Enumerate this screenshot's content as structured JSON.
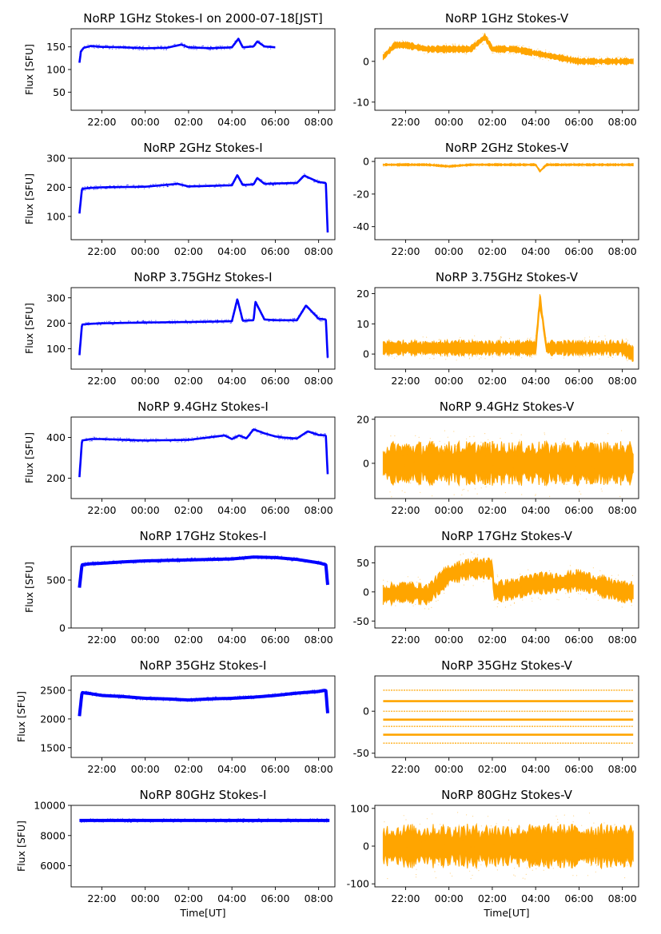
{
  "figure": {
    "xlabel": "Time[UT]",
    "ylabel": "Flux [SFU]",
    "time_ticks": [
      "22:00",
      "00:00",
      "02:00",
      "04:00",
      "06:00",
      "08:00"
    ]
  },
  "chart_data": [
    {
      "type": "scatter",
      "title": "NoRP 1GHz Stokes-I on 2000-07-18[JST]",
      "xlabel": "",
      "ylabel": "Flux [SFU]",
      "color": "#0000ff",
      "x_range": [
        "20:35",
        "08:45"
      ],
      "ylim": [
        10,
        190
      ],
      "yticks": [
        50,
        100,
        150
      ],
      "data_range": [
        "20:58",
        "06:00"
      ],
      "x": [
        "20:58",
        "21:02",
        "21:10",
        "21:30",
        "22:00",
        "23:00",
        "00:00",
        "01:00",
        "01:40",
        "02:00",
        "03:00",
        "04:00",
        "04:18",
        "04:30",
        "05:00",
        "05:10",
        "05:30",
        "06:00"
      ],
      "y": [
        115,
        140,
        148,
        152,
        150,
        149,
        147,
        148,
        155,
        149,
        147,
        149,
        168,
        149,
        151,
        162,
        151,
        149
      ]
    },
    {
      "type": "scatter",
      "title": "NoRP 1GHz Stokes-V",
      "xlabel": "",
      "ylabel": "",
      "color": "#ffa500",
      "x_range": [
        "20:35",
        "08:45"
      ],
      "ylim": [
        -12,
        8
      ],
      "yticks": [
        -10,
        0
      ],
      "data_range": [
        "20:58",
        "08:30"
      ],
      "x": [
        "20:58",
        "21:30",
        "22:00",
        "23:00",
        "00:00",
        "01:00",
        "01:40",
        "02:00",
        "03:00",
        "04:00",
        "05:00",
        "06:00",
        "07:00",
        "08:30"
      ],
      "y": [
        1,
        4,
        4,
        3,
        3,
        3,
        6,
        3,
        3,
        2,
        1,
        0,
        0,
        0
      ]
    },
    {
      "type": "scatter",
      "title": "NoRP 2GHz Stokes-I",
      "xlabel": "",
      "ylabel": "Flux [SFU]",
      "color": "#0000ff",
      "x_range": [
        "20:35",
        "08:45"
      ],
      "ylim": [
        20,
        300
      ],
      "yticks": [
        100,
        200,
        300
      ],
      "data_range": [
        "20:58",
        "08:25"
      ],
      "x": [
        "20:58",
        "21:05",
        "21:30",
        "22:00",
        "00:00",
        "01:30",
        "02:00",
        "04:00",
        "04:15",
        "04:30",
        "05:00",
        "05:10",
        "05:30",
        "06:00",
        "07:00",
        "07:20",
        "08:00",
        "08:20",
        "08:25"
      ],
      "y": [
        110,
        195,
        198,
        200,
        202,
        212,
        203,
        207,
        242,
        208,
        210,
        232,
        212,
        213,
        215,
        240,
        218,
        215,
        45
      ]
    },
    {
      "type": "scatter",
      "title": "NoRP 2GHz Stokes-V",
      "xlabel": "",
      "ylabel": "",
      "color": "#ffa500",
      "x_range": [
        "20:35",
        "08:45"
      ],
      "ylim": [
        -48,
        2
      ],
      "yticks": [
        -40,
        -20,
        0
      ],
      "data_range": [
        "20:58",
        "08:30"
      ],
      "x": [
        "20:58",
        "22:00",
        "23:00",
        "00:00",
        "01:00",
        "02:00",
        "03:00",
        "04:00",
        "04:12",
        "04:30",
        "06:00",
        "08:00",
        "08:30"
      ],
      "y": [
        -2,
        -2,
        -2,
        -3,
        -2,
        -2,
        -2,
        -2,
        -6,
        -2,
        -2,
        -2,
        -2
      ]
    },
    {
      "type": "scatter",
      "title": "NoRP 3.75GHz Stokes-I",
      "xlabel": "",
      "ylabel": "Flux [SFU]",
      "color": "#0000ff",
      "x_range": [
        "20:35",
        "08:45"
      ],
      "ylim": [
        20,
        340
      ],
      "yticks": [
        100,
        200,
        300
      ],
      "data_range": [
        "20:58",
        "08:25"
      ],
      "x": [
        "20:58",
        "21:05",
        "21:30",
        "22:00",
        "00:00",
        "02:00",
        "04:00",
        "04:15",
        "04:30",
        "05:00",
        "05:05",
        "05:30",
        "06:00",
        "07:00",
        "07:25",
        "08:00",
        "08:20",
        "08:25"
      ],
      "y": [
        75,
        195,
        198,
        200,
        203,
        205,
        208,
        295,
        210,
        212,
        285,
        215,
        212,
        212,
        270,
        218,
        215,
        65
      ]
    },
    {
      "type": "scatter",
      "title": "NoRP 3.75GHz Stokes-V",
      "xlabel": "",
      "ylabel": "",
      "color": "#ffa500",
      "x_range": [
        "20:35",
        "08:45"
      ],
      "ylim": [
        -5,
        22
      ],
      "yticks": [
        0,
        10,
        20
      ],
      "data_range": [
        "20:58",
        "08:30"
      ],
      "x": [
        "20:58",
        "22:00",
        "00:00",
        "02:00",
        "04:00",
        "04:12",
        "04:30",
        "06:00",
        "08:00",
        "08:30"
      ],
      "y": [
        2,
        2,
        2,
        2,
        2,
        18,
        2,
        2,
        2,
        0
      ]
    },
    {
      "type": "scatter",
      "title": "NoRP 9.4GHz Stokes-I",
      "xlabel": "",
      "ylabel": "Flux [SFU]",
      "color": "#0000ff",
      "x_range": [
        "20:35",
        "08:45"
      ],
      "ylim": [
        100,
        500
      ],
      "yticks": [
        200,
        400
      ],
      "data_range": [
        "20:58",
        "08:25"
      ],
      "x": [
        "20:58",
        "21:05",
        "21:30",
        "22:00",
        "00:00",
        "02:00",
        "03:40",
        "04:00",
        "04:20",
        "04:40",
        "05:00",
        "05:30",
        "06:00",
        "06:30",
        "07:00",
        "07:30",
        "08:00",
        "08:20",
        "08:25"
      ],
      "y": [
        205,
        385,
        392,
        392,
        385,
        388,
        410,
        392,
        410,
        395,
        440,
        420,
        405,
        398,
        395,
        430,
        412,
        410,
        220
      ]
    },
    {
      "type": "scatter",
      "title": "NoRP 9.4GHz Stokes-V",
      "xlabel": "",
      "ylabel": "",
      "color": "#ffa500",
      "x_range": [
        "20:35",
        "08:45"
      ],
      "ylim": [
        -16,
        21
      ],
      "yticks": [
        0,
        20
      ],
      "data_range": [
        "20:58",
        "08:30"
      ],
      "x": [
        "20:58",
        "22:00",
        "00:00",
        "02:00",
        "04:00",
        "06:00",
        "08:00",
        "08:30"
      ],
      "y": [
        0,
        0,
        0,
        0,
        0,
        0,
        0,
        0
      ]
    },
    {
      "type": "scatter",
      "title": "NoRP 17GHz Stokes-I",
      "xlabel": "",
      "ylabel": "Flux [SFU]",
      "color": "#0000ff",
      "x_range": [
        "20:35",
        "08:45"
      ],
      "ylim": [
        0,
        850
      ],
      "yticks": [
        0,
        500
      ],
      "data_range": [
        "20:58",
        "08:25"
      ],
      "x": [
        "20:58",
        "21:05",
        "21:30",
        "22:00",
        "23:00",
        "00:00",
        "01:00",
        "02:00",
        "03:00",
        "04:00",
        "05:00",
        "06:00",
        "07:00",
        "08:00",
        "08:20",
        "08:25"
      ],
      "y": [
        420,
        660,
        670,
        675,
        690,
        700,
        705,
        710,
        715,
        720,
        740,
        735,
        715,
        680,
        660,
        450
      ]
    },
    {
      "type": "scatter",
      "title": "NoRP 17GHz Stokes-V",
      "xlabel": "",
      "ylabel": "",
      "color": "#ffa500",
      "x_range": [
        "20:35",
        "08:45"
      ],
      "ylim": [
        -62,
        78
      ],
      "yticks": [
        -50,
        0,
        50
      ],
      "data_range": [
        "20:58",
        "08:30"
      ],
      "x": [
        "20:58",
        "22:00",
        "23:00",
        "00:00",
        "01:00",
        "02:00",
        "02:05",
        "03:00",
        "04:00",
        "05:00",
        "06:00",
        "07:00",
        "08:00",
        "08:30"
      ],
      "y": [
        -5,
        0,
        -5,
        30,
        40,
        40,
        0,
        5,
        15,
        15,
        20,
        10,
        0,
        0
      ]
    },
    {
      "type": "scatter",
      "title": "NoRP 35GHz Stokes-I",
      "xlabel": "",
      "ylabel": "Flux [SFU]",
      "color": "#0000ff",
      "x_range": [
        "20:35",
        "08:45"
      ],
      "ylim": [
        1330,
        2750
      ],
      "yticks": [
        1500,
        2000,
        2500
      ],
      "data_range": [
        "20:58",
        "08:25"
      ],
      "x": [
        "20:58",
        "21:05",
        "21:30",
        "22:00",
        "23:00",
        "00:00",
        "01:00",
        "02:00",
        "03:00",
        "04:00",
        "05:00",
        "06:00",
        "07:00",
        "08:00",
        "08:20",
        "08:25"
      ],
      "y": [
        2050,
        2460,
        2440,
        2410,
        2390,
        2360,
        2350,
        2330,
        2350,
        2360,
        2380,
        2410,
        2450,
        2480,
        2500,
        2100
      ]
    },
    {
      "type": "scatter",
      "title": "NoRP 35GHz Stokes-V",
      "xlabel": "",
      "ylabel": "",
      "color": "#ffa500",
      "x_range": [
        "20:35",
        "08:45"
      ],
      "ylim": [
        -55,
        42
      ],
      "yticks": [
        -50,
        0
      ],
      "data_range": [
        "20:58",
        "08:30"
      ],
      "levels": [
        25,
        12,
        0,
        -10,
        -18,
        -28,
        -38
      ]
    },
    {
      "type": "scatter",
      "title": "NoRP 80GHz Stokes-I",
      "xlabel": "Time[UT]",
      "ylabel": "Flux [SFU]",
      "color": "#0000ff",
      "x_range": [
        "20:35",
        "08:45"
      ],
      "ylim": [
        4600,
        10000
      ],
      "yticks": [
        6000,
        8000,
        10000
      ],
      "data_range": [
        "20:58",
        "08:30"
      ],
      "x": [
        "20:58",
        "22:00",
        "00:00",
        "02:00",
        "04:00",
        "06:00",
        "08:00",
        "08:30"
      ],
      "y": [
        9000,
        9000,
        9000,
        9000,
        9000,
        9000,
        9000,
        9000
      ]
    },
    {
      "type": "scatter",
      "title": "NoRP 80GHz Stokes-V",
      "xlabel": "Time[UT]",
      "ylabel": "",
      "color": "#ffa500",
      "x_range": [
        "20:35",
        "08:45"
      ],
      "ylim": [
        -108,
        108
      ],
      "yticks": [
        -100,
        0,
        100
      ],
      "data_range": [
        "20:58",
        "08:30"
      ],
      "x": [
        "20:58",
        "22:00",
        "00:00",
        "02:00",
        "04:00",
        "06:00",
        "08:00",
        "08:30"
      ],
      "y": [
        0,
        0,
        0,
        0,
        0,
        0,
        0,
        0
      ]
    }
  ]
}
